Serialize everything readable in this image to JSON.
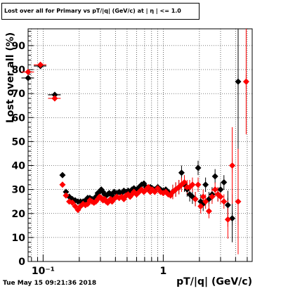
{
  "chart_data": {
    "type": "scatter",
    "title": "Lost over all for Primary vs pT/|q| (GeV/c) at | η | <= 1.0",
    "xlabel": "pT/|q| (GeV/c)",
    "ylabel": "Lost over all (%)",
    "x_scale": "log",
    "xlim": [
      0.075,
      5.5
    ],
    "ylim": [
      0,
      97
    ],
    "x_tick_labels": [
      "10⁻¹",
      "1"
    ],
    "x_tick_values": [
      0.1,
      1
    ],
    "y_ticks": [
      0,
      10,
      20,
      30,
      40,
      50,
      60,
      70,
      80,
      90
    ],
    "grid": true,
    "legend": "none",
    "series": [
      {
        "color": "#000000",
        "marker": "diamond",
        "points": [
          [
            0.075,
            76.5
          ],
          [
            0.095,
            81.5
          ],
          [
            0.125,
            69.5
          ],
          [
            0.145,
            36
          ],
          [
            0.155,
            29
          ],
          [
            0.165,
            27
          ],
          [
            0.175,
            26
          ],
          [
            0.185,
            25.5
          ],
          [
            0.195,
            25
          ],
          [
            0.205,
            25
          ],
          [
            0.215,
            25
          ],
          [
            0.225,
            25.5
          ],
          [
            0.235,
            26.5
          ],
          [
            0.245,
            26.5
          ],
          [
            0.255,
            26
          ],
          [
            0.265,
            25.5
          ],
          [
            0.275,
            27
          ],
          [
            0.285,
            28.5
          ],
          [
            0.295,
            29
          ],
          [
            0.305,
            30
          ],
          [
            0.315,
            29
          ],
          [
            0.325,
            28
          ],
          [
            0.335,
            27.5
          ],
          [
            0.345,
            28
          ],
          [
            0.355,
            28.5
          ],
          [
            0.365,
            28
          ],
          [
            0.375,
            27.5
          ],
          [
            0.39,
            29
          ],
          [
            0.41,
            28.5
          ],
          [
            0.43,
            29
          ],
          [
            0.45,
            28.5
          ],
          [
            0.47,
            29.5
          ],
          [
            0.49,
            29
          ],
          [
            0.51,
            29.5
          ],
          [
            0.53,
            29
          ],
          [
            0.55,
            30
          ],
          [
            0.57,
            30.5
          ],
          [
            0.6,
            30
          ],
          [
            0.63,
            31
          ],
          [
            0.66,
            32
          ],
          [
            0.69,
            32.5
          ],
          [
            0.72,
            31
          ],
          [
            0.75,
            30
          ],
          [
            0.78,
            31
          ],
          [
            0.81,
            30.5
          ],
          [
            0.85,
            30
          ],
          [
            0.9,
            31
          ],
          [
            0.95,
            30
          ],
          [
            1.0,
            29.5
          ],
          [
            1.05,
            30
          ],
          [
            1.1,
            29
          ],
          [
            1.15,
            28
          ],
          [
            1.2,
            29
          ],
          [
            1.27,
            30
          ],
          [
            1.35,
            31
          ],
          [
            1.42,
            37
          ],
          [
            1.5,
            32
          ],
          [
            1.58,
            30
          ],
          [
            1.66,
            28
          ],
          [
            1.75,
            27
          ],
          [
            1.85,
            26
          ],
          [
            1.95,
            39
          ],
          [
            2.05,
            25
          ],
          [
            2.15,
            24
          ],
          [
            2.25,
            32
          ],
          [
            2.4,
            26
          ],
          [
            2.55,
            28
          ],
          [
            2.7,
            35.5
          ],
          [
            2.85,
            28
          ],
          [
            3.0,
            30
          ],
          [
            3.2,
            33
          ],
          [
            3.45,
            23.5
          ],
          [
            3.75,
            18
          ],
          [
            4.2,
            75
          ]
        ]
      },
      {
        "color": "#ff0000",
        "marker": "diamond",
        "points": [
          [
            0.075,
            79
          ],
          [
            0.095,
            82
          ],
          [
            0.125,
            68
          ],
          [
            0.145,
            32
          ],
          [
            0.155,
            27.5
          ],
          [
            0.165,
            25
          ],
          [
            0.175,
            24.5
          ],
          [
            0.185,
            23
          ],
          [
            0.195,
            21.5
          ],
          [
            0.205,
            23
          ],
          [
            0.215,
            24
          ],
          [
            0.225,
            23.5
          ],
          [
            0.235,
            24
          ],
          [
            0.245,
            25.5
          ],
          [
            0.255,
            25
          ],
          [
            0.265,
            24.5
          ],
          [
            0.275,
            25
          ],
          [
            0.285,
            26
          ],
          [
            0.295,
            27
          ],
          [
            0.305,
            26.5
          ],
          [
            0.315,
            25.5
          ],
          [
            0.325,
            26
          ],
          [
            0.335,
            25
          ],
          [
            0.345,
            24.5
          ],
          [
            0.355,
            25.5
          ],
          [
            0.365,
            26
          ],
          [
            0.375,
            25
          ],
          [
            0.39,
            26
          ],
          [
            0.41,
            27
          ],
          [
            0.43,
            26.5
          ],
          [
            0.45,
            27
          ],
          [
            0.47,
            26
          ],
          [
            0.49,
            27.5
          ],
          [
            0.51,
            28
          ],
          [
            0.53,
            27
          ],
          [
            0.55,
            28
          ],
          [
            0.57,
            29
          ],
          [
            0.6,
            28
          ],
          [
            0.63,
            29
          ],
          [
            0.66,
            30
          ],
          [
            0.69,
            29
          ],
          [
            0.72,
            30
          ],
          [
            0.75,
            31
          ],
          [
            0.78,
            29
          ],
          [
            0.81,
            30
          ],
          [
            0.85,
            29
          ],
          [
            0.9,
            30.5
          ],
          [
            0.95,
            29
          ],
          [
            1.0,
            28.5
          ],
          [
            1.05,
            29
          ],
          [
            1.1,
            28
          ],
          [
            1.15,
            27.5
          ],
          [
            1.2,
            29
          ],
          [
            1.27,
            30
          ],
          [
            1.35,
            31
          ],
          [
            1.42,
            32
          ],
          [
            1.5,
            33
          ],
          [
            1.58,
            31
          ],
          [
            1.66,
            31
          ],
          [
            1.75,
            32
          ],
          [
            1.85,
            26
          ],
          [
            1.95,
            32
          ],
          [
            2.05,
            23
          ],
          [
            2.15,
            27
          ],
          [
            2.25,
            25
          ],
          [
            2.4,
            21
          ],
          [
            2.55,
            27
          ],
          [
            2.7,
            30
          ],
          [
            2.85,
            28
          ],
          [
            3.0,
            27
          ],
          [
            3.2,
            25
          ],
          [
            3.45,
            17.5
          ],
          [
            3.75,
            40
          ],
          [
            4.2,
            25
          ],
          [
            4.9,
            75
          ]
        ]
      }
    ],
    "errors_approx": {
      "black_high_x": [
        [
          3.45,
          6
        ],
        [
          3.75,
          10
        ],
        [
          4.2,
          60
        ]
      ],
      "red_high_x": [
        [
          3.45,
          8
        ],
        [
          3.75,
          16
        ],
        [
          4.2,
          22
        ],
        [
          4.9,
          22
        ]
      ]
    }
  },
  "footer": {
    "timestamp": "Tue May 15 09:21:36 2018"
  }
}
